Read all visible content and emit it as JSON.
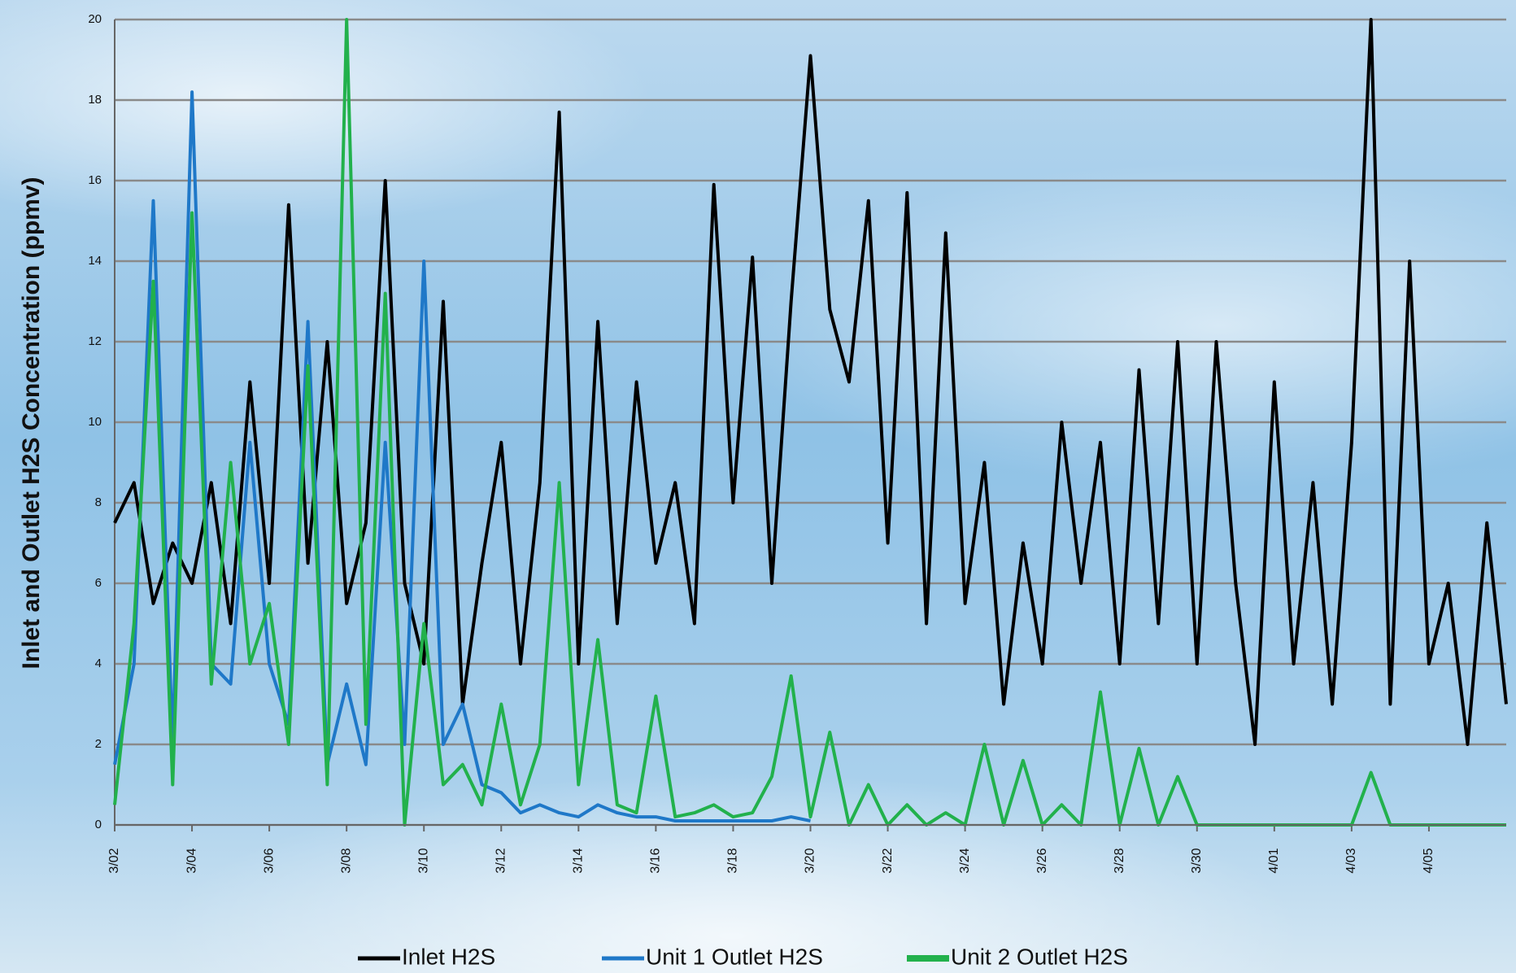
{
  "chart_data": {
    "type": "line",
    "y_label": "Inlet and Outlet H2S Concentration (ppmv)",
    "x": [
      0,
      0.5,
      1,
      1.5,
      2,
      2.5,
      3,
      3.5,
      4,
      4.5,
      5,
      5.5,
      6,
      6.5,
      7,
      7.5,
      8,
      8.5,
      9,
      9.5,
      10,
      10.5,
      11,
      11.5,
      12,
      12.5,
      13,
      13.5,
      14,
      14.5,
      15,
      15.5,
      16,
      16.5,
      17,
      17.5,
      18,
      18.5,
      19,
      19.5,
      20,
      20.5,
      21,
      21.5,
      22,
      22.5,
      23,
      23.5,
      24,
      24.5,
      25,
      25.5,
      26,
      26.5,
      27,
      27.5,
      28,
      28.5,
      29,
      29.5,
      30,
      30.5,
      31,
      31.5,
      32,
      32.5,
      33,
      33.5,
      34,
      34.5,
      35,
      35.5,
      36
    ],
    "series": [
      {
        "name": "Inlet H2S",
        "color": "#000000",
        "values": [
          7.5,
          8.5,
          5.5,
          7,
          6,
          8.5,
          5,
          11,
          6,
          15.4,
          6.5,
          12,
          5.5,
          7.5,
          16,
          6,
          4,
          13,
          3,
          6.5,
          9.5,
          4,
          8.5,
          17.7,
          4,
          12.5,
          5,
          11,
          6.5,
          8.5,
          5,
          15.9,
          8,
          14.1,
          6,
          13,
          19.1,
          12.8,
          11,
          15.5,
          7,
          15.7,
          5,
          14.7,
          5.5,
          9,
          3,
          7,
          4,
          10,
          6,
          9.5,
          4,
          11.3,
          5,
          12,
          4,
          12,
          6,
          2,
          11,
          4,
          8.5,
          3,
          9.5,
          20,
          3,
          14,
          4,
          6,
          2,
          7.5,
          3
        ]
      },
      {
        "name": "Unit 1 Outlet H2S",
        "color": "#1f78c8",
        "values": [
          1.5,
          4,
          15.5,
          2,
          18.2,
          4,
          3.5,
          9.5,
          4,
          2.5,
          12.5,
          1.5,
          3.5,
          1.5,
          9.5,
          2,
          14,
          2,
          3,
          1,
          0.8,
          0.3,
          0.5,
          0.3,
          0.2,
          0.5,
          0.3,
          0.2,
          0.2,
          0.1,
          0.1,
          0.1,
          0.1,
          0.1,
          0.1,
          0.2,
          0.1,
          null,
          null,
          null,
          null,
          null,
          null,
          null,
          null,
          null,
          null,
          null,
          null,
          null,
          null,
          null,
          null,
          null,
          null,
          null,
          null,
          null,
          null,
          null,
          null,
          null,
          null,
          null,
          null,
          null,
          null,
          null,
          null,
          null,
          null,
          null,
          null
        ]
      },
      {
        "name": "Unit 2 Outlet H2S",
        "color": "#22b14c",
        "values": [
          0.5,
          5,
          13.5,
          1,
          15.2,
          3.5,
          9,
          4,
          5.5,
          2,
          11.4,
          1,
          20,
          2.5,
          13.2,
          0,
          5,
          1,
          1.5,
          0.5,
          3,
          0.5,
          2,
          8.5,
          1,
          4.6,
          0.5,
          0.3,
          3.2,
          0.2,
          0.3,
          0.5,
          0.2,
          0.3,
          1.2,
          3.7,
          0.2,
          2.3,
          0,
          1,
          0,
          0.5,
          0,
          0.3,
          0,
          2,
          0,
          1.6,
          0,
          0.5,
          0,
          3.3,
          0,
          1.9,
          0,
          1.2,
          0,
          0,
          0,
          0,
          0,
          0,
          0,
          0,
          0,
          1.3,
          0,
          0,
          0,
          0,
          0,
          0,
          0
        ]
      }
    ],
    "xlim": [
      0,
      36
    ],
    "xticks": [
      {
        "value": 0,
        "label": "3/02"
      },
      {
        "value": 2,
        "label": "3/04"
      },
      {
        "value": 4,
        "label": "3/06"
      },
      {
        "value": 6,
        "label": "3/08"
      },
      {
        "value": 8,
        "label": "3/10"
      },
      {
        "value": 10,
        "label": "3/12"
      },
      {
        "value": 12,
        "label": "3/14"
      },
      {
        "value": 14,
        "label": "3/16"
      },
      {
        "value": 16,
        "label": "3/18"
      },
      {
        "value": 18,
        "label": "3/20"
      },
      {
        "value": 20,
        "label": "3/22"
      },
      {
        "value": 22,
        "label": "3/24"
      },
      {
        "value": 24,
        "label": "3/26"
      },
      {
        "value": 26,
        "label": "3/28"
      },
      {
        "value": 28,
        "label": "3/30"
      },
      {
        "value": 30,
        "label": "4/01"
      },
      {
        "value": 32,
        "label": "4/03"
      },
      {
        "value": 34,
        "label": "4/05"
      }
    ],
    "ylim": [
      0,
      20
    ],
    "yticks": [
      0,
      2,
      4,
      6,
      8,
      10,
      12,
      14,
      16,
      18,
      20
    ],
    "grid": true,
    "legend": "bottom"
  }
}
